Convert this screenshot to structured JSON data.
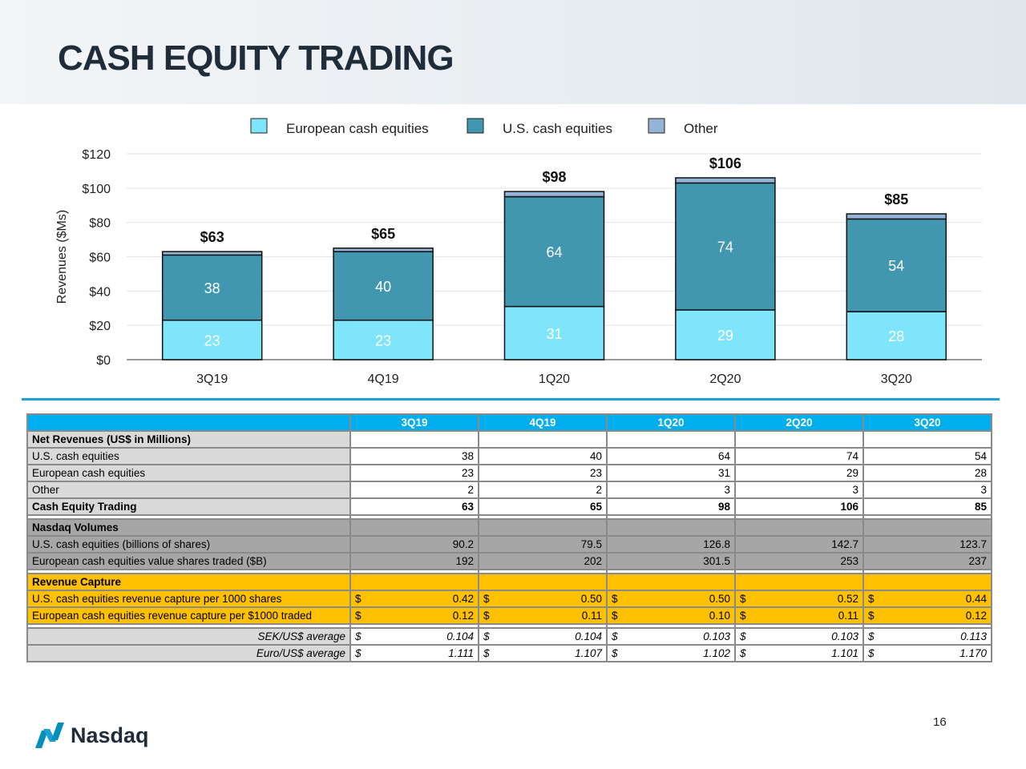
{
  "title": "CASH EQUITY TRADING",
  "colors": {
    "european": "#7fe5fb",
    "us": "#4197b0",
    "other": "#95b3d7",
    "header": "#00adef",
    "volumes": "#a6a6a6",
    "capture": "#ffc000",
    "rule": "#1ba0d8"
  },
  "chart_data": {
    "type": "bar",
    "stacked": true,
    "categories": [
      "3Q19",
      "4Q19",
      "1Q20",
      "2Q20",
      "3Q20"
    ],
    "series": [
      {
        "name": "European cash equities",
        "values": [
          23,
          23,
          31,
          29,
          28
        ],
        "labels": [
          "23",
          "23",
          "31",
          "29",
          "28"
        ]
      },
      {
        "name": "U.S. cash equities",
        "values": [
          38,
          40,
          64,
          74,
          54
        ],
        "labels": [
          "38",
          "40",
          "64",
          "74",
          "54"
        ]
      },
      {
        "name": "Other",
        "values": [
          2,
          2,
          3,
          3,
          3
        ]
      }
    ],
    "totals": [
      "$63",
      "$65",
      "$98",
      "$106",
      "$85"
    ],
    "total_values": [
      63,
      65,
      98,
      106,
      85
    ],
    "ylabel": "Revenues ($Ms)",
    "ylim": [
      0,
      120
    ],
    "yticks": [
      "$0",
      "$20",
      "$40",
      "$60",
      "$80",
      "$100",
      "$120"
    ],
    "grid": true,
    "legend": "top"
  },
  "table": {
    "columns": [
      "3Q19",
      "4Q19",
      "1Q20",
      "2Q20",
      "3Q20"
    ],
    "rows": [
      {
        "style": "light bold",
        "label": "Net Revenues (US$ in Millions)",
        "values": [
          "",
          "",
          "",
          "",
          ""
        ]
      },
      {
        "style": "light",
        "label": "U.S. cash equities",
        "values": [
          "38",
          "40",
          "64",
          "74",
          "54"
        ]
      },
      {
        "style": "light",
        "label": "European cash equities",
        "values": [
          "23",
          "23",
          "31",
          "29",
          "28"
        ]
      },
      {
        "style": "light",
        "label": "Other",
        "values": [
          "2",
          "2",
          "3",
          "3",
          "3"
        ]
      },
      {
        "style": "light bold",
        "label": "Cash Equity Trading",
        "values": [
          "63",
          "65",
          "98",
          "106",
          "85"
        ]
      },
      {
        "style": "sp"
      },
      {
        "style": "dark bold",
        "label": "Nasdaq Volumes",
        "values": [
          "",
          "",
          "",
          "",
          ""
        ]
      },
      {
        "style": "dark",
        "label": "U.S. cash equities (billions of shares)",
        "values": [
          "90.2",
          "79.5",
          "126.8",
          "142.7",
          "123.7"
        ]
      },
      {
        "style": "dark",
        "label": "European cash equities value shares traded ($B)",
        "values": [
          "192",
          "202",
          "301.5",
          "253",
          "237"
        ]
      },
      {
        "style": "sp"
      },
      {
        "style": "gold bold",
        "label": "Revenue Capture",
        "values": [
          "",
          "",
          "",
          "",
          ""
        ]
      },
      {
        "style": "gold",
        "label": "U.S. cash equities revenue capture per 1000 shares",
        "currency": "$",
        "values": [
          "0.42",
          "0.50",
          "0.50",
          "0.52",
          "0.44"
        ]
      },
      {
        "style": "gold",
        "label": "European cash equities revenue capture per $1000 traded",
        "currency": "$",
        "values": [
          "0.12",
          "0.11",
          "0.10",
          "0.11",
          "0.12"
        ]
      },
      {
        "style": "sp"
      },
      {
        "style": "fx",
        "label": "SEK/US$ average",
        "currency": "$",
        "values": [
          "0.104",
          "0.104",
          "0.103",
          "0.103",
          "0.113"
        ]
      },
      {
        "style": "fx",
        "label": "Euro/US$ average",
        "currency": "$",
        "values": [
          "1.111",
          "1.107",
          "1.102",
          "1.101",
          "1.170"
        ]
      }
    ]
  },
  "page_number": "16",
  "logo_text": "Nasdaq"
}
